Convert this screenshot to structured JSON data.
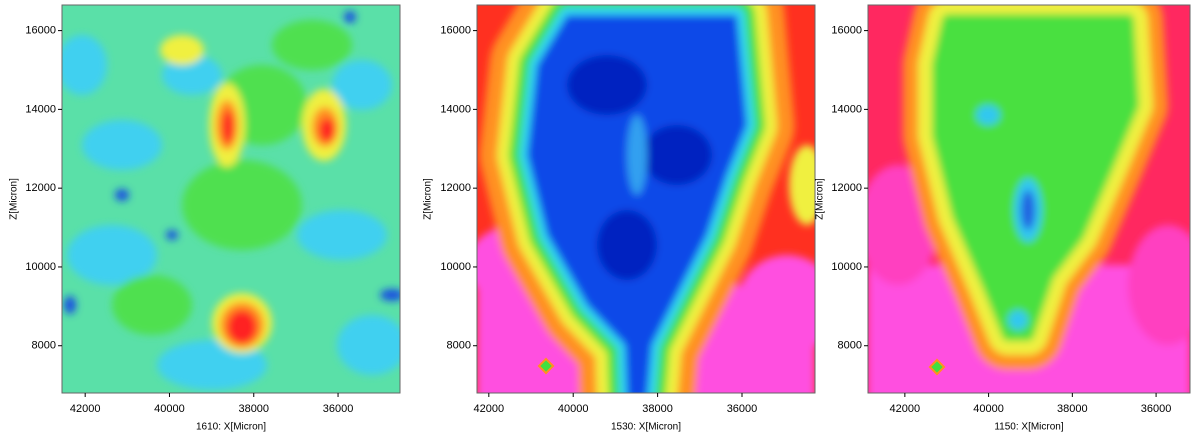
{
  "chart_data": [
    {
      "type": "contour",
      "x_label": "1610: X[Micron]",
      "y_label": "Z[Micron]",
      "xlim": [
        42550,
        34530
      ],
      "xticks": [
        42000,
        40000,
        38000,
        36000
      ],
      "ylim": [
        6800,
        16650
      ],
      "yticks": [
        8000,
        10000,
        12000,
        14000,
        16000
      ]
    },
    {
      "type": "contour",
      "x_label": "1530: X[Micron]",
      "y_label": "Z[Micron]",
      "xlim": [
        42280,
        34270
      ],
      "xticks": [
        42000,
        40000,
        38000,
        36000
      ],
      "ylim": [
        6800,
        16650
      ],
      "yticks": [
        8000,
        10000,
        12000,
        14000,
        16000
      ]
    },
    {
      "type": "contour",
      "x_label": "1150: X[Micron]",
      "y_label": "Z[Micron]",
      "xlim": [
        42880,
        35190
      ],
      "xticks": [
        42000,
        40000,
        38000,
        36000
      ],
      "ylim": [
        6800,
        16650
      ],
      "yticks": [
        8000,
        10000,
        12000,
        14000,
        16000
      ]
    }
  ]
}
